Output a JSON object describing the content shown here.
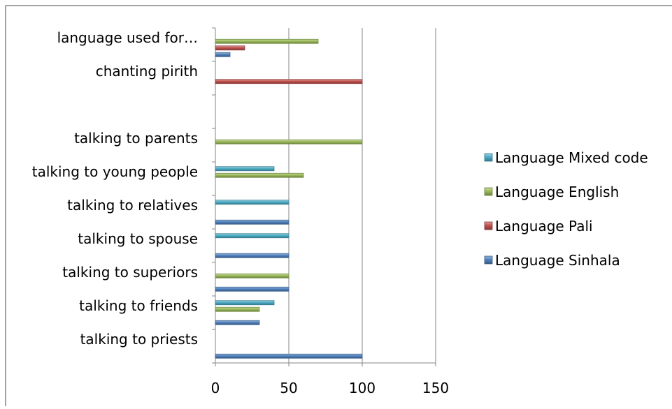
{
  "chart_data": {
    "type": "bar",
    "orientation": "horizontal",
    "categories": [
      "talking to priests",
      "talking to friends",
      "talking to superiors",
      "talking to spouse",
      "talking to relatives",
      "talking to young people",
      "talking to parents",
      "",
      "chanting pirith",
      "language used for…"
    ],
    "series": [
      {
        "name": "Language Sinhala",
        "color": "#4f81bd",
        "values": [
          100,
          30,
          50,
          50,
          50,
          null,
          null,
          null,
          null,
          10
        ]
      },
      {
        "name": "Language Pali",
        "color": "#c0504d",
        "values": [
          null,
          null,
          null,
          null,
          null,
          null,
          null,
          null,
          100,
          20
        ]
      },
      {
        "name": "Language English",
        "color": "#9bbb59",
        "values": [
          null,
          30,
          50,
          null,
          null,
          60,
          100,
          null,
          null,
          70
        ]
      },
      {
        "name": "Language Mixed code",
        "color": "#4bacc6",
        "values": [
          null,
          40,
          null,
          50,
          50,
          40,
          null,
          null,
          null,
          null
        ]
      }
    ],
    "xlim": [
      0,
      150
    ],
    "xticks": [
      "0",
      "50",
      "100",
      "150"
    ],
    "grid": "vertical",
    "legend_position": "right",
    "legend_order": [
      "Language Mixed code",
      "Language English",
      "Language Pali",
      "Language Sinhala"
    ]
  }
}
